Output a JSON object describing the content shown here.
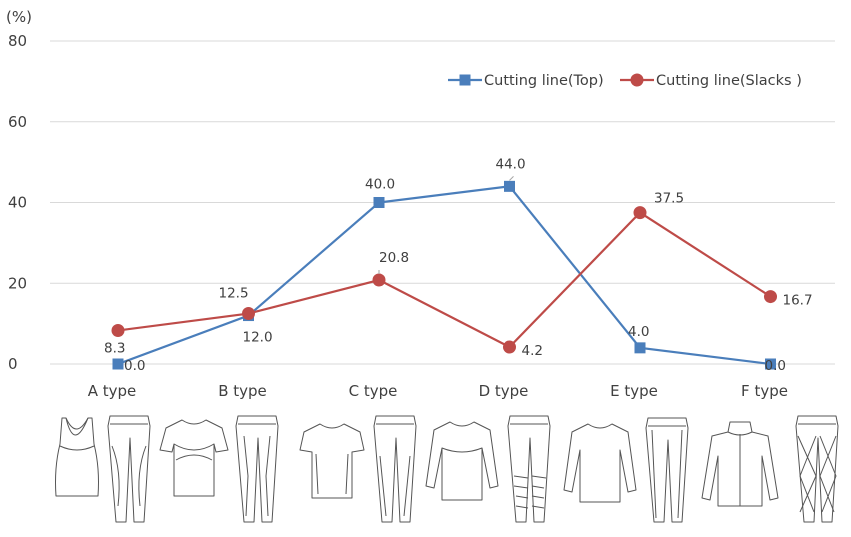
{
  "chart_data": {
    "type": "line",
    "unit_label": "(%)",
    "categories": [
      "A type",
      "B type",
      "C type",
      "D type",
      "E type",
      "F type"
    ],
    "ylim": [
      0,
      80
    ],
    "yticks": [
      0,
      20,
      40,
      60,
      80
    ],
    "grid": true,
    "legend_position": "top-right",
    "series": [
      {
        "name": "Cutting line(Top)",
        "color": "#4a7ebb",
        "marker": "square",
        "values": [
          0.0,
          12.0,
          40.0,
          44.0,
          4.0,
          0.0
        ],
        "labels": [
          "0.0",
          "12.0",
          "40.0",
          "44.0",
          "4.0",
          "0.0"
        ]
      },
      {
        "name": "Cutting line(Slacks )",
        "color": "#be4b48",
        "marker": "circle",
        "values": [
          8.3,
          12.5,
          20.8,
          4.2,
          37.5,
          16.7
        ],
        "labels": [
          "8.3",
          "12.5",
          "20.8",
          "4.2",
          "37.5",
          "16.7"
        ]
      }
    ]
  }
}
